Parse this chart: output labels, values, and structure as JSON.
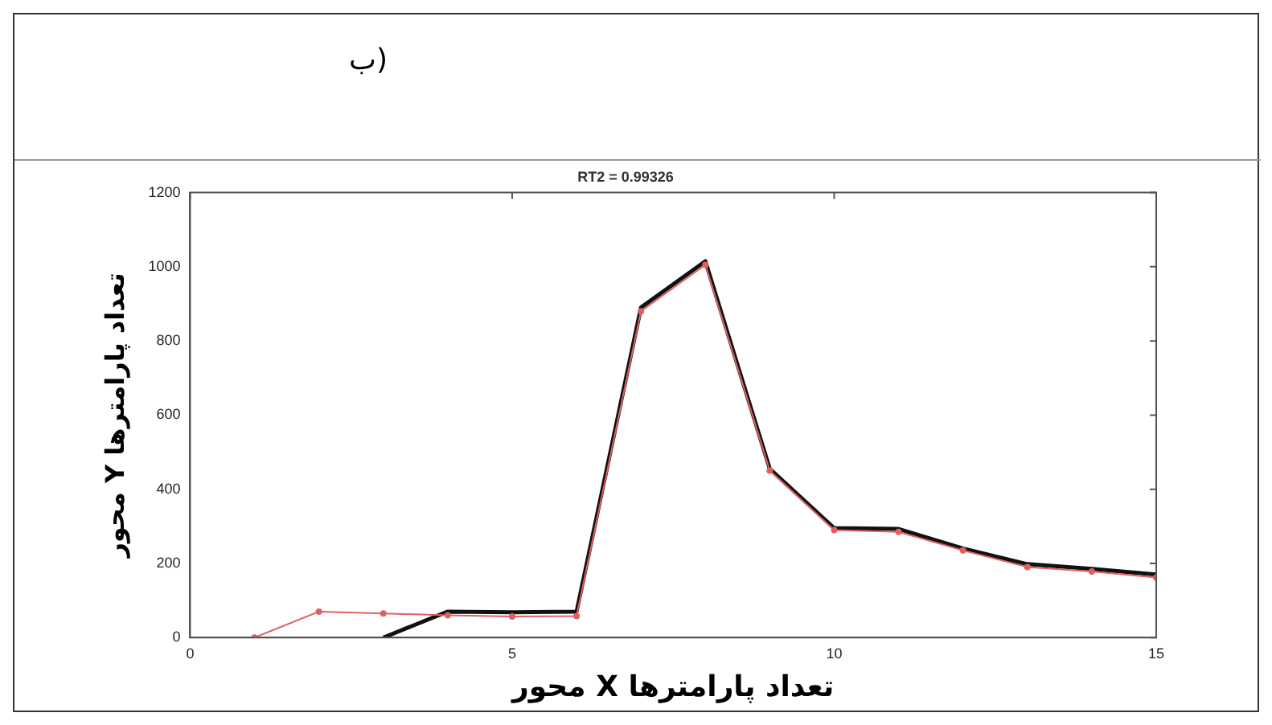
{
  "chart_data": {
    "type": "line",
    "title": "RT2 = 0.99326",
    "subtitle": "ب)",
    "xlabel": "محور X تعداد پارامترها",
    "ylabel": "محور Y تعداد پارامترها",
    "xlim": [
      0,
      15
    ],
    "xticks": [
      0,
      5,
      10,
      15
    ],
    "ylim": [
      0,
      1200
    ],
    "yticks": [
      0,
      200,
      400,
      600,
      800,
      1000,
      1200
    ],
    "grid": false,
    "legend": false,
    "series": [
      {
        "color": "#e06060",
        "marker": "circle",
        "x": [
          1,
          2,
          3,
          4,
          5,
          6,
          7,
          8,
          9,
          10,
          11,
          12,
          13,
          14,
          15
        ],
        "values": [
          0,
          70,
          65,
          60,
          57,
          58,
          880,
          1005,
          450,
          290,
          285,
          235,
          190,
          178,
          162
        ]
      },
      {
        "color": "#111111",
        "marker": "none",
        "x": [
          3,
          4,
          5,
          6,
          7,
          8,
          9,
          10,
          11,
          12,
          13,
          14,
          15
        ],
        "values": [
          0,
          70,
          68,
          70,
          890,
          1015,
          455,
          295,
          293,
          240,
          198,
          185,
          170
        ]
      }
    ]
  }
}
